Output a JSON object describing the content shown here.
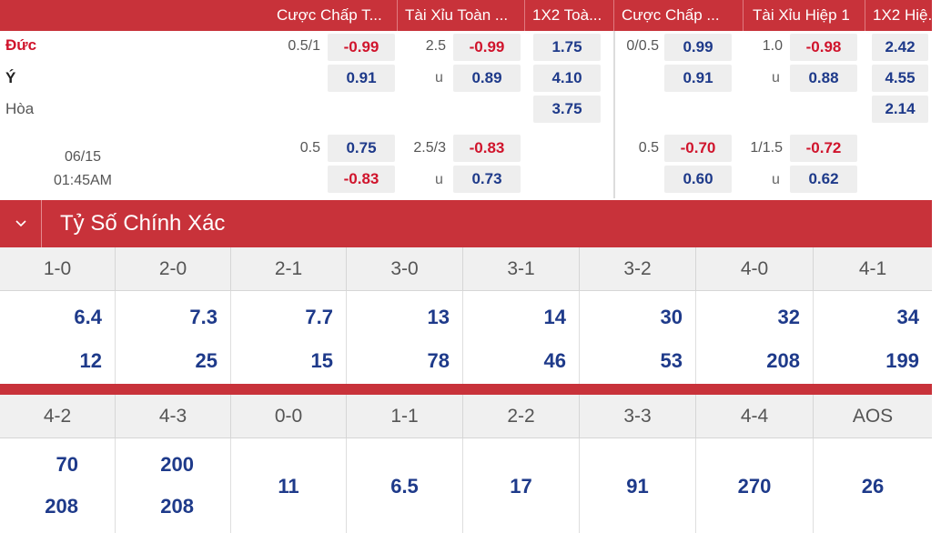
{
  "odds_header": [
    "Cược Chấp T...",
    "Tài Xỉu Toàn ...",
    "1X2 Toà...",
    "Cược Chấp ...",
    "Tài Xỉu Hiệp 1",
    "1X2 Hiệ..."
  ],
  "teams": {
    "home": "Đức",
    "away": "Ý",
    "draw": "Hòa"
  },
  "match1": {
    "hcap_line": "0.5/1",
    "hcap_home": "-0.99",
    "hcap_away": "0.91",
    "ou_line": "2.5",
    "ou_over": "-0.99",
    "ou_u": "u",
    "ou_under": "0.89",
    "x12_home": "1.75",
    "x12_away": "4.10",
    "x12_draw": "3.75",
    "h1_hcap_line": "0/0.5",
    "h1_hcap_home": "0.99",
    "h1_hcap_away": "0.91",
    "h1_ou_line": "1.0",
    "h1_ou_over": "-0.98",
    "h1_ou_u": "u",
    "h1_ou_under": "0.88",
    "h1_x12_home": "2.42",
    "h1_x12_away": "4.55",
    "h1_x12_draw": "2.14"
  },
  "match2": {
    "date": "06/15",
    "time": "01:45AM",
    "hcap_line": "0.5",
    "hcap_home": "0.75",
    "hcap_away": "-0.83",
    "ou_line": "2.5/3",
    "ou_over": "-0.83",
    "ou_u": "u",
    "ou_under": "0.73",
    "h1_hcap_line": "0.5",
    "h1_hcap_home": "-0.70",
    "h1_hcap_away": "0.60",
    "h1_ou_line": "1/1.5",
    "h1_ou_over": "-0.72",
    "h1_ou_u": "u",
    "h1_ou_under": "0.62"
  },
  "section": {
    "title": "Tỷ Số Chính Xác",
    "chevron": "chevron-down-icon"
  },
  "score_table_1": {
    "headers": [
      "1-0",
      "2-0",
      "2-1",
      "3-0",
      "3-1",
      "3-2",
      "4-0",
      "4-1"
    ],
    "row1": [
      "6.4",
      "7.3",
      "7.7",
      "13",
      "14",
      "30",
      "32",
      "34"
    ],
    "row2": [
      "12",
      "25",
      "15",
      "78",
      "46",
      "53",
      "208",
      "199"
    ]
  },
  "score_table_2": {
    "headers": [
      "4-2",
      "4-3",
      "0-0",
      "1-1",
      "2-2",
      "3-3",
      "4-4",
      "AOS"
    ],
    "row1": [
      "70",
      "200"
    ],
    "row2": [
      "208",
      "208"
    ],
    "single": [
      "11",
      "6.5",
      "17",
      "91",
      "270",
      "26"
    ]
  },
  "colors": {
    "accent": "#c8323a",
    "negative": "#d0142c",
    "positive": "#1e3a8a"
  }
}
